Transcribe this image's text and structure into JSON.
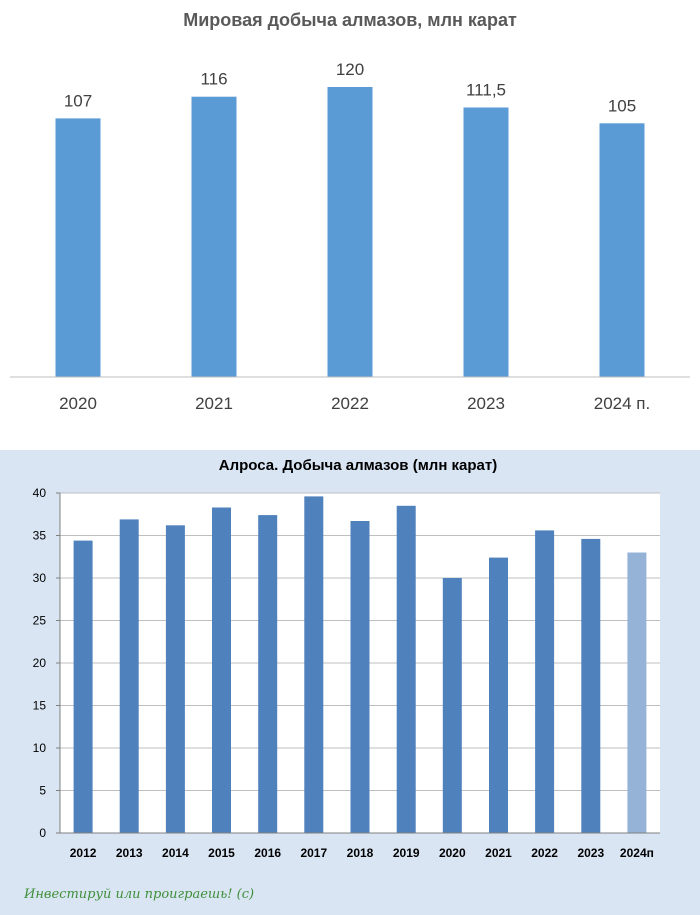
{
  "chart_data": [
    {
      "type": "bar",
      "title": "Мировая добыча алмазов, млн карат",
      "categories": [
        "2020",
        "2021",
        "2022",
        "2023",
        "2024 п."
      ],
      "values": [
        107,
        116,
        120,
        111.5,
        105
      ],
      "data_labels": [
        "107",
        "116",
        "120",
        "111,5",
        "105"
      ],
      "ylim": [
        0,
        130
      ],
      "grid": false,
      "legend": "none",
      "colors": {
        "bar": "#5b9bd5",
        "axis": "#bfbfbf"
      }
    },
    {
      "type": "bar",
      "title": "Алроса. Добыча алмазов (млн карат)",
      "categories": [
        "2012",
        "2013",
        "2014",
        "2015",
        "2016",
        "2017",
        "2018",
        "2019",
        "2020",
        "2021",
        "2022",
        "2023",
        "2024п"
      ],
      "values": [
        34.4,
        36.9,
        36.2,
        38.3,
        37.4,
        39.6,
        36.7,
        38.5,
        30.0,
        32.4,
        35.6,
        34.6,
        33.0
      ],
      "yticks": [
        "0",
        "5",
        "10",
        "15",
        "20",
        "25",
        "30",
        "35",
        "40"
      ],
      "ylim": [
        0,
        40
      ],
      "grid": true,
      "legend": "none",
      "forecast_category": "2024п",
      "colors": {
        "bar": "#4f81bd",
        "forecast_bar": "#95b3d7",
        "background": "#d9e5f3",
        "plot": "#ffffff",
        "grid": "#bfbfbf"
      }
    }
  ],
  "footer": {
    "text": "Инвестируй или проиграешь! (с)"
  }
}
